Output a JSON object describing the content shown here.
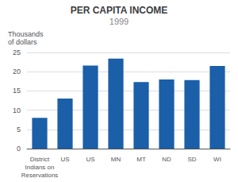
{
  "chart_data": {
    "type": "bar",
    "title": "PER CAPITA INCOME",
    "subtitle": "1999",
    "ylabel": "Thousands\nof dollars",
    "categories": [
      "District\nIndians on\nReservations",
      "US",
      "US",
      "MN",
      "MT",
      "ND",
      "SD",
      "WI"
    ],
    "values": [
      8.0,
      13.0,
      21.6,
      23.4,
      17.3,
      18.0,
      17.8,
      21.5
    ],
    "color": "#1a5fa8",
    "ylim": [
      0,
      25
    ],
    "yticks": [
      0,
      5,
      10,
      15,
      20,
      25
    ],
    "grid": true
  }
}
